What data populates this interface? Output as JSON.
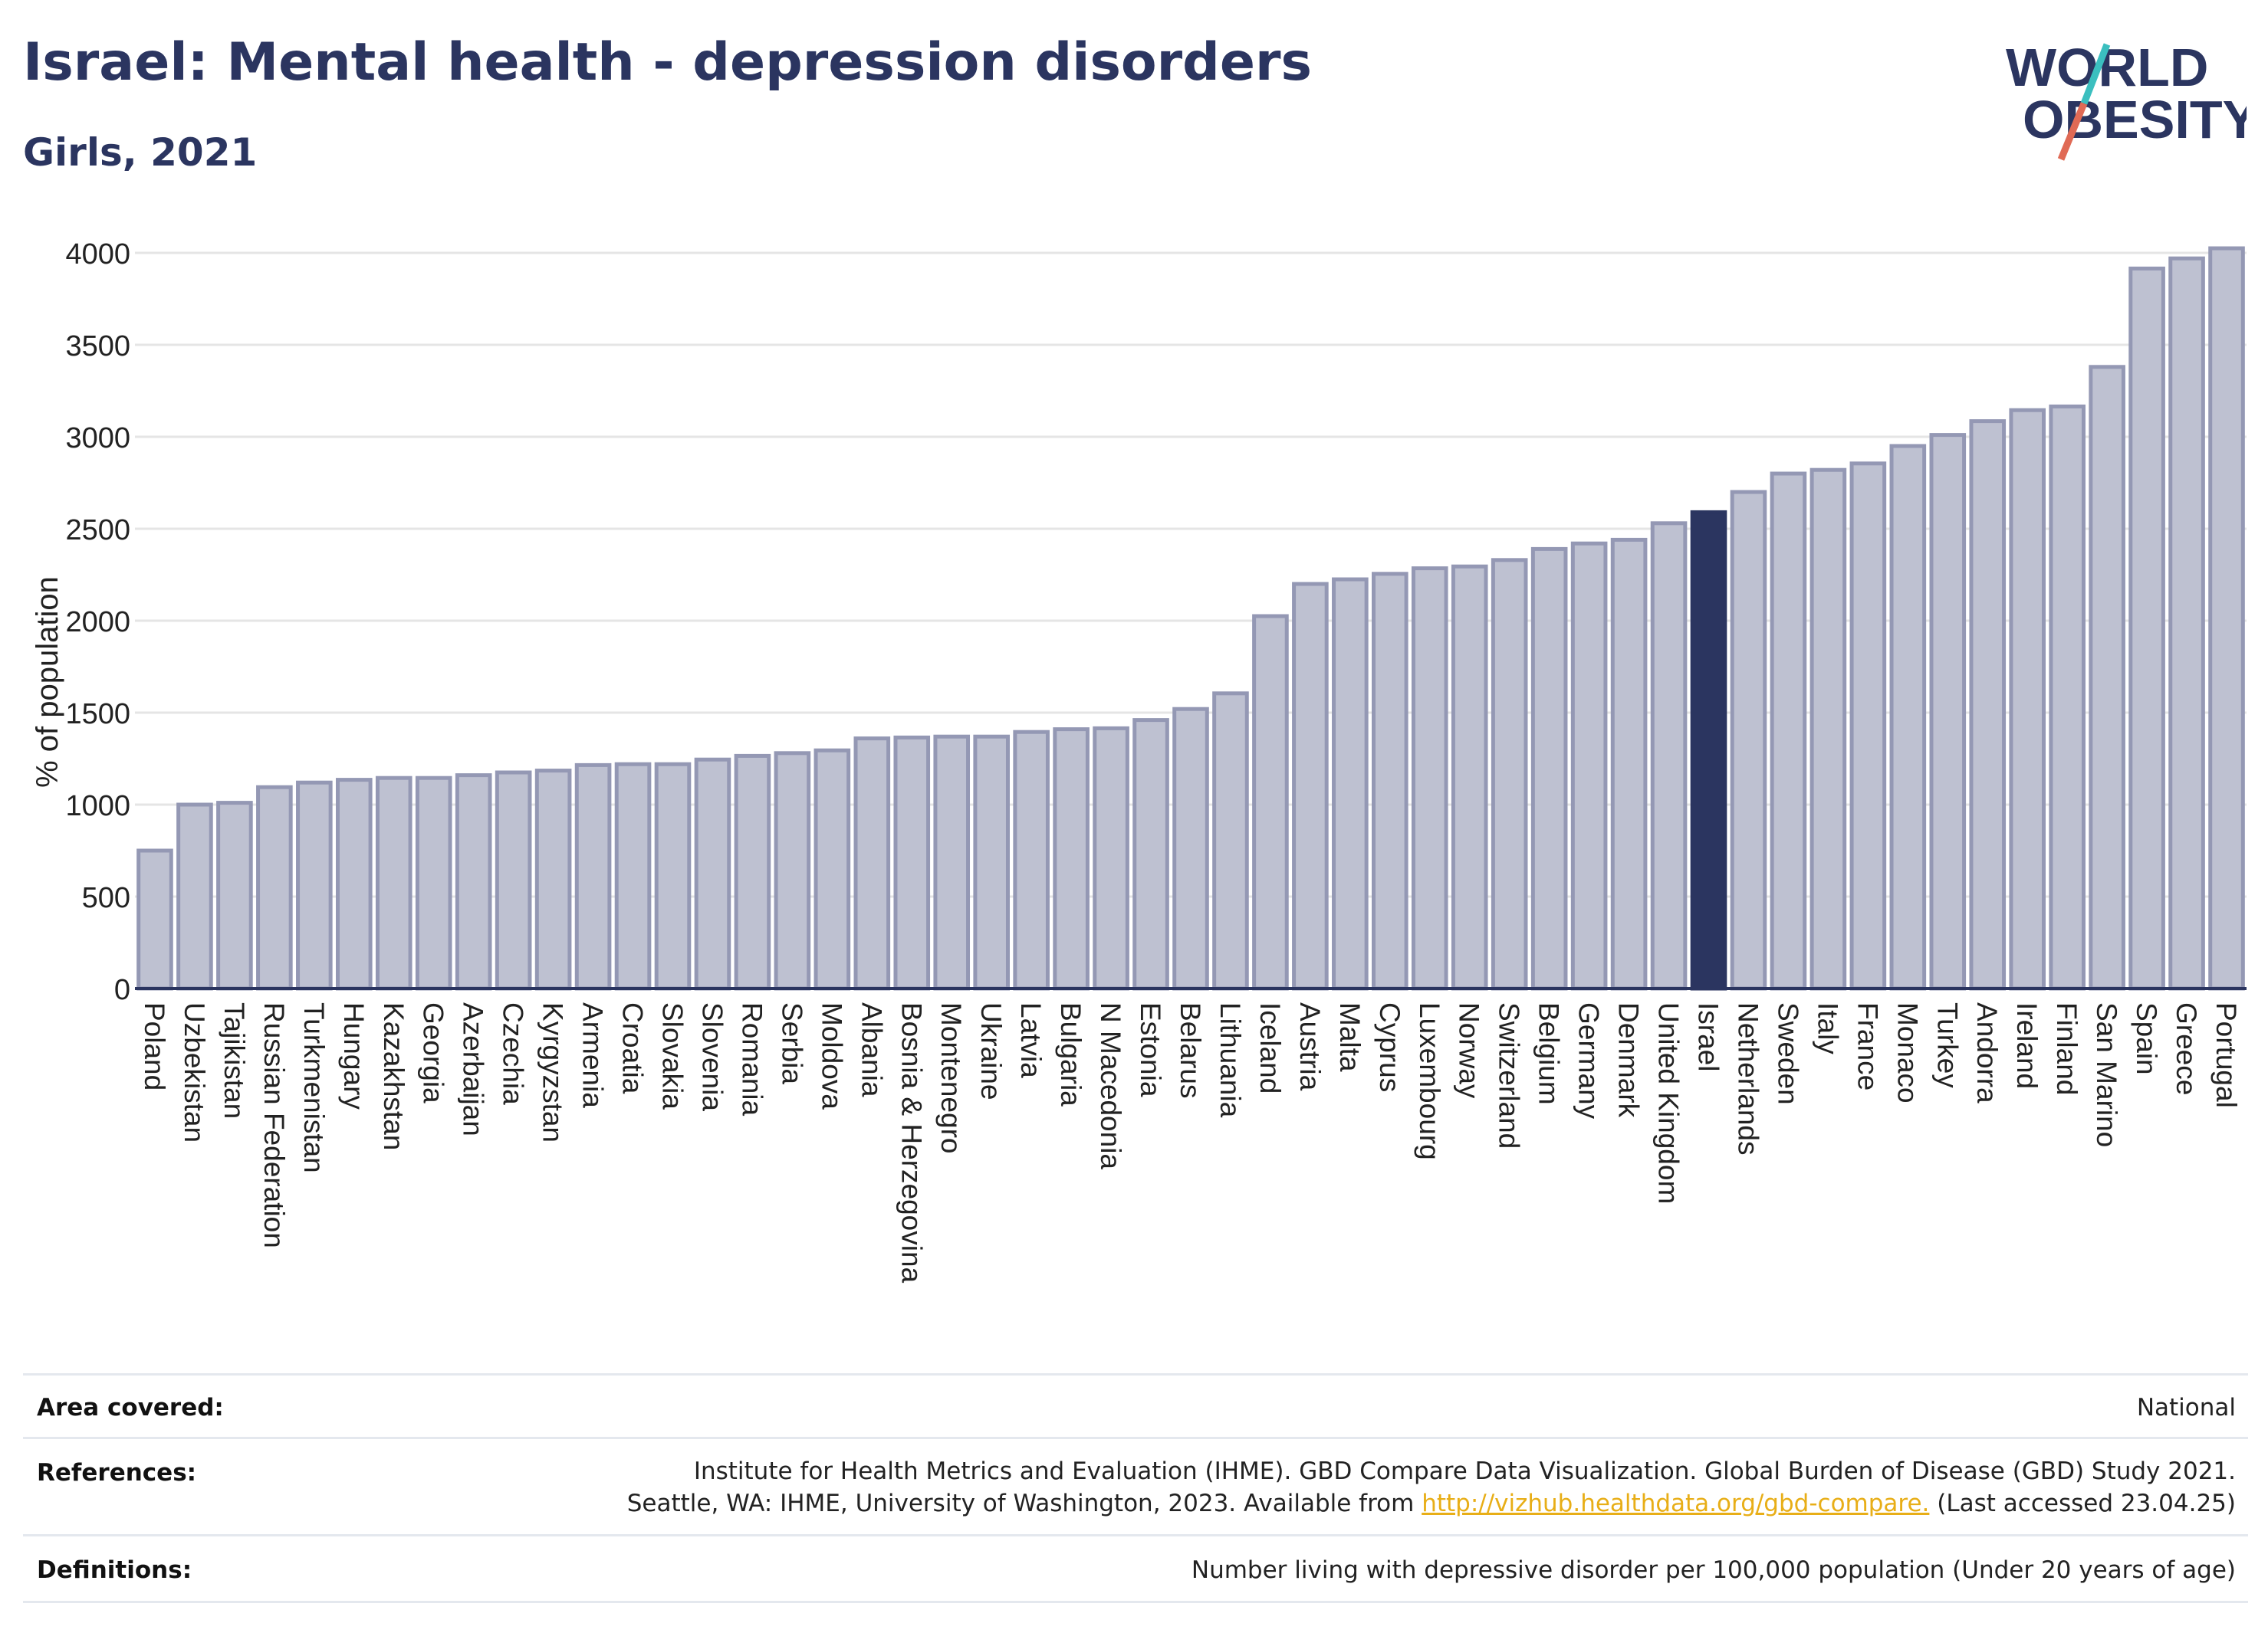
{
  "header": {
    "title": "Israel: Mental health - depression disorders",
    "subtitle": "Girls, 2021"
  },
  "logo": {
    "line1": "WORLD",
    "line2": "OBESITY",
    "colors": {
      "text": "#2b3560",
      "slash_teal": "#3bbfbf",
      "slash_red": "#e06a55"
    }
  },
  "colors": {
    "bar": "#bec1d1",
    "bar_stroke": "#9498b4",
    "highlight": "#2b3560",
    "grid": "#e5e5e5",
    "axis_text": "#222222"
  },
  "chart_data": {
    "type": "bar",
    "ylabel": "% of population",
    "ylim": [
      0,
      4000
    ],
    "yticks": [
      0,
      500,
      1000,
      1500,
      2000,
      2500,
      3000,
      3500,
      4000
    ],
    "grid": true,
    "highlight": "Israel",
    "categories": [
      "Poland",
      "Uzbekistan",
      "Tajikistan",
      "Russian Federation",
      "Turkmenistan",
      "Hungary",
      "Kazakhstan",
      "Georgia",
      "Azerbaijan",
      "Czechia",
      "Kyrgyzstan",
      "Armenia",
      "Croatia",
      "Slovakia",
      "Slovenia",
      "Romania",
      "Serbia",
      "Moldova",
      "Albania",
      "Bosnia & Herzegovina",
      "Montenegro",
      "Ukraine",
      "Latvia",
      "Bulgaria",
      "N Macedonia",
      "Estonia",
      "Belarus",
      "Lithuania",
      "Iceland",
      "Austria",
      "Malta",
      "Cyprus",
      "Luxembourg",
      "Norway",
      "Switzerland",
      "Belgium",
      "Germany",
      "Denmark",
      "United Kingdom",
      "Israel",
      "Netherlands",
      "Sweden",
      "Italy",
      "France",
      "Monaco",
      "Turkey",
      "Andorra",
      "Ireland",
      "Finland",
      "San Marino",
      "Spain",
      "Greece",
      "Portugal"
    ],
    "values": [
      750,
      1000,
      1010,
      1095,
      1120,
      1135,
      1145,
      1145,
      1160,
      1175,
      1185,
      1215,
      1220,
      1220,
      1245,
      1265,
      1280,
      1295,
      1360,
      1365,
      1370,
      1370,
      1395,
      1410,
      1415,
      1460,
      1520,
      1605,
      2025,
      2200,
      2225,
      2255,
      2285,
      2295,
      2330,
      2390,
      2420,
      2440,
      2530,
      2590,
      2700,
      2800,
      2820,
      2855,
      2950,
      3010,
      3085,
      3145,
      3165,
      3380,
      3915,
      3970,
      4025
    ]
  },
  "footer": {
    "area_label": "Area covered:",
    "area_value": "National",
    "references_label": "References:",
    "references_line1": "Institute for Health Metrics and Evaluation (IHME). GBD Compare Data Visualization. Global Burden of Disease (GBD) Study 2021.",
    "references_line2_pre": "Seattle, WA: IHME, University of Washington, 2023. Available from ",
    "references_link": "http://vizhub.healthdata.org/gbd-compare.",
    "references_line2_post": " (Last accessed 23.04.25)",
    "definitions_label": "Definitions:",
    "definitions_value": "Number living with depressive disorder per 100,000 population (Under 20 years of age)"
  }
}
